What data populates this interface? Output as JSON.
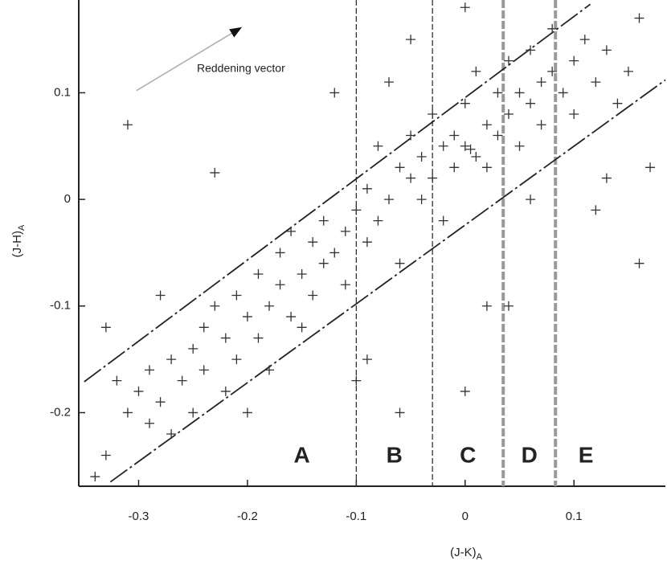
{
  "chart_data": {
    "type": "scatter",
    "xlabel": "(J-K)",
    "xlabel_sub": "A",
    "ylabel": "(J-H)",
    "ylabel_sub": "A",
    "xlim": [
      -0.355,
      0.184
    ],
    "ylim": [
      -0.269,
      0.187
    ],
    "xticks": [
      -0.3,
      -0.2,
      -0.1,
      0,
      0.1
    ],
    "yticks": [
      -0.2,
      -0.1,
      0,
      0.1
    ],
    "color": "#333333",
    "x": [
      -0.34,
      -0.33,
      -0.33,
      -0.32,
      -0.31,
      -0.31,
      -0.3,
      -0.29,
      -0.29,
      -0.28,
      -0.28,
      -0.27,
      -0.27,
      -0.26,
      -0.25,
      -0.25,
      -0.24,
      -0.24,
      -0.23,
      -0.23,
      -0.22,
      -0.22,
      -0.21,
      -0.21,
      -0.2,
      -0.2,
      -0.19,
      -0.19,
      -0.18,
      -0.18,
      -0.17,
      -0.17,
      -0.16,
      -0.16,
      -0.15,
      -0.15,
      -0.14,
      -0.14,
      -0.13,
      -0.13,
      -0.12,
      -0.12,
      -0.11,
      -0.11,
      -0.1,
      -0.1,
      -0.09,
      -0.09,
      -0.08,
      -0.08,
      -0.07,
      -0.07,
      -0.06,
      -0.06,
      -0.05,
      -0.05,
      -0.04,
      -0.04,
      -0.03,
      -0.03,
      -0.02,
      -0.02,
      -0.01,
      -0.01,
      0.0,
      0.0,
      0.005,
      0.01,
      0.01,
      0.02,
      0.02,
      0.03,
      0.03,
      0.04,
      0.04,
      0.05,
      0.05,
      0.06,
      0.06,
      0.07,
      0.07,
      0.08,
      0.08,
      0.09,
      0.1,
      0.1,
      0.11,
      0.12,
      0.13,
      0.14,
      0.15,
      0.16,
      0.17,
      0.16,
      -0.09,
      -0.06,
      0.0,
      0.04,
      0.06,
      0.13,
      0.12,
      0.0,
      -0.05,
      0.02
    ],
    "values": [
      -0.26,
      -0.24,
      -0.12,
      -0.17,
      -0.2,
      0.07,
      -0.18,
      -0.21,
      -0.16,
      -0.09,
      -0.19,
      -0.15,
      -0.22,
      -0.17,
      -0.14,
      -0.2,
      -0.12,
      -0.16,
      0.025,
      -0.1,
      -0.13,
      -0.18,
      -0.09,
      -0.15,
      -0.11,
      -0.2,
      -0.07,
      -0.13,
      -0.1,
      -0.16,
      -0.05,
      -0.08,
      -0.11,
      -0.03,
      -0.07,
      -0.12,
      -0.04,
      -0.09,
      -0.02,
      -0.06,
      0.1,
      -0.05,
      -0.03,
      -0.08,
      -0.01,
      -0.17,
      -0.04,
      0.01,
      -0.02,
      0.05,
      0.0,
      0.11,
      0.03,
      -0.06,
      0.02,
      0.06,
      0.0,
      0.04,
      0.08,
      0.02,
      0.05,
      -0.02,
      0.06,
      0.03,
      0.05,
      0.09,
      0.047,
      0.04,
      0.12,
      0.07,
      0.03,
      0.1,
      0.06,
      0.08,
      0.13,
      0.1,
      0.05,
      0.09,
      0.14,
      0.11,
      0.07,
      0.12,
      0.16,
      0.1,
      0.13,
      0.08,
      0.15,
      0.11,
      0.14,
      0.09,
      0.12,
      -0.06,
      0.03,
      0.17,
      -0.15,
      -0.2,
      -0.18,
      -0.1,
      0.0,
      0.02,
      -0.01,
      0.18,
      0.15,
      -0.1
    ],
    "vlines": [
      -0.1,
      -0.03,
      0.035,
      0.083
    ],
    "region_labels": [
      "A",
      "B",
      "C",
      "D",
      "E"
    ],
    "band_lines": [
      {
        "x": [
          -0.35,
          0.115
        ],
        "y": [
          -0.171,
          0.183
        ]
      },
      {
        "x": [
          -0.326,
          0.184
        ],
        "y": [
          -0.265,
          0.112
        ]
      }
    ],
    "reddening_vector": {
      "label": "Reddening vector",
      "x": [
        -0.302,
        -0.206
      ],
      "y": [
        0.102,
        0.161
      ]
    }
  }
}
